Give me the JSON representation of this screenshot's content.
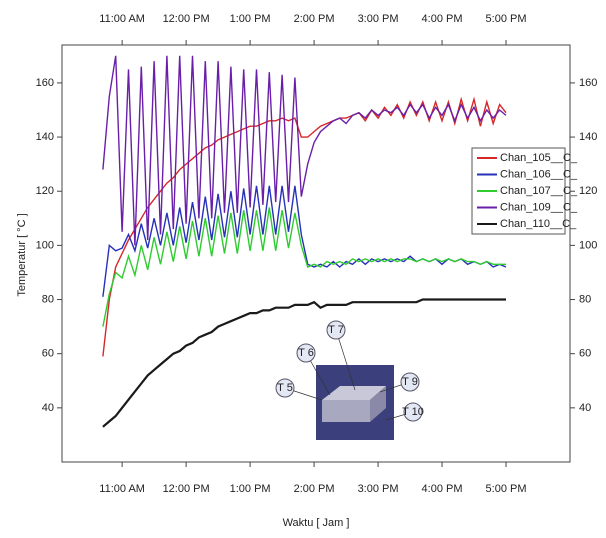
{
  "chart_data": {
    "type": "line",
    "x_label": "Waktu [ Jam ]",
    "y_label": "Temperatur [ °C ]",
    "x": [
      10.7,
      10.8,
      10.9,
      11.0,
      11.1,
      11.2,
      11.3,
      11.4,
      11.5,
      11.6,
      11.7,
      11.8,
      11.9,
      12.0,
      12.1,
      12.2,
      12.3,
      12.4,
      12.5,
      12.6,
      12.7,
      12.8,
      12.9,
      13.0,
      13.1,
      13.2,
      13.3,
      13.4,
      13.5,
      13.6,
      13.7,
      13.8,
      13.9,
      14.0,
      14.1,
      14.2,
      14.3,
      14.4,
      14.5,
      14.6,
      14.7,
      14.8,
      14.9,
      15.0,
      15.1,
      15.2,
      15.3,
      15.4,
      15.5,
      15.6,
      15.7,
      15.8,
      15.9,
      16.0,
      16.1,
      16.2,
      16.3,
      16.4,
      16.5,
      16.6,
      16.7,
      16.8,
      16.9,
      17.0
    ],
    "series": [
      {
        "name": "Chan_105__C_",
        "color": "#d62728",
        "values": [
          59,
          80,
          92,
          97,
          102,
          106,
          110,
          114,
          117,
          120,
          123,
          125,
          128,
          130,
          132,
          134,
          136,
          137,
          139,
          140,
          141,
          142,
          143,
          144,
          144,
          145,
          146,
          146,
          147,
          146,
          147,
          140,
          140,
          142,
          144,
          145,
          146,
          147,
          147,
          148,
          149,
          146,
          150,
          147,
          151,
          148,
          152,
          147,
          153,
          148,
          153,
          146,
          153,
          146,
          153,
          145,
          154,
          146,
          154,
          144,
          153,
          145,
          152,
          149
        ]
      },
      {
        "name": "Chan_106__C_",
        "color": "#2630b8",
        "values": [
          81,
          100,
          98,
          99,
          104,
          98,
          108,
          99,
          110,
          100,
          112,
          100,
          114,
          101,
          116,
          102,
          118,
          102,
          119,
          103,
          120,
          103,
          121,
          104,
          122,
          104,
          122,
          104,
          122,
          105,
          122,
          104,
          93,
          92,
          93,
          92,
          94,
          92,
          94,
          93,
          95,
          93,
          95,
          94,
          95,
          94,
          95,
          94,
          96,
          94,
          95,
          94,
          95,
          93,
          95,
          94,
          95,
          93,
          94,
          93,
          94,
          92,
          93,
          92
        ]
      },
      {
        "name": "Chan_107__C_",
        "color": "#2ecc2e",
        "values": [
          70,
          82,
          90,
          88,
          96,
          89,
          100,
          91,
          103,
          93,
          105,
          94,
          107,
          95,
          109,
          96,
          110,
          96,
          111,
          97,
          112,
          97,
          113,
          98,
          113,
          98,
          114,
          98,
          113,
          99,
          112,
          100,
          92,
          93,
          92,
          94,
          93,
          94,
          93,
          95,
          94,
          95,
          94,
          95,
          94,
          95,
          94,
          95,
          95,
          94,
          95,
          94,
          95,
          94,
          95,
          94,
          95,
          94,
          94,
          93,
          94,
          93,
          93,
          93
        ]
      },
      {
        "name": "Chan_109__C_",
        "color": "#6a1fa8",
        "values": [
          128,
          155,
          170,
          105,
          165,
          100,
          166,
          102,
          168,
          104,
          170,
          106,
          170,
          108,
          170,
          110,
          168,
          110,
          168,
          112,
          166,
          112,
          165,
          114,
          165,
          115,
          164,
          116,
          163,
          116,
          162,
          118,
          130,
          138,
          142,
          144,
          146,
          147,
          145,
          148,
          149,
          147,
          150,
          148,
          150,
          149,
          151,
          148,
          152,
          149,
          152,
          147,
          151,
          148,
          152,
          146,
          152,
          147,
          151,
          146,
          150,
          147,
          150,
          148
        ]
      },
      {
        "name": "Chan_110__C_",
        "color": "#1a1a1a",
        "values": [
          33,
          35,
          37,
          40,
          43,
          46,
          49,
          52,
          54,
          56,
          58,
          60,
          61,
          63,
          64,
          66,
          67,
          68,
          70,
          71,
          72,
          73,
          74,
          75,
          75,
          76,
          76,
          77,
          77,
          77,
          78,
          78,
          78,
          79,
          77,
          78,
          78,
          78,
          78,
          79,
          79,
          79,
          79,
          79,
          79,
          79,
          79,
          79,
          79,
          79,
          80,
          80,
          80,
          80,
          80,
          80,
          80,
          80,
          80,
          80,
          80,
          80,
          80,
          80
        ]
      }
    ],
    "xlim": [
      10.06,
      18.0
    ],
    "xticks": [
      {
        "value": 11,
        "label": "11:00 AM"
      },
      {
        "value": 12,
        "label": "12:00 PM"
      },
      {
        "value": 13,
        "label": "1:00 PM"
      },
      {
        "value": 14,
        "label": "2:00 PM"
      },
      {
        "value": 15,
        "label": "3:00 PM"
      },
      {
        "value": 16,
        "label": "4:00 PM"
      },
      {
        "value": 17,
        "label": "5:00 PM"
      }
    ],
    "ylim": [
      20,
      174
    ],
    "yticks": [
      40,
      60,
      80,
      100,
      120,
      140,
      160
    ],
    "grid": false,
    "legend": "right",
    "annotations": [
      "T 7",
      "T 6",
      "T 5",
      "T 9",
      "T 10"
    ]
  }
}
